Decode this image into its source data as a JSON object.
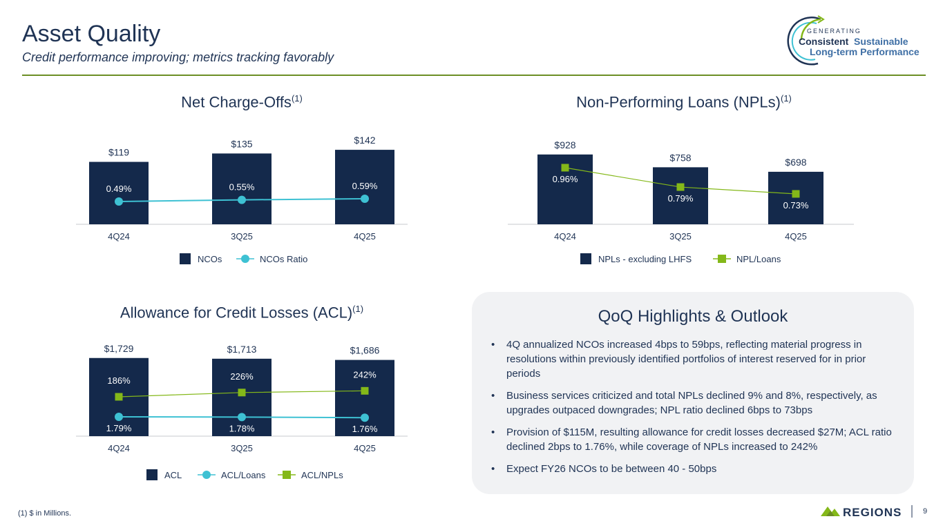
{
  "header": {
    "title": "Asset Quality",
    "subtitle": "Credit performance improving; metrics tracking favorably"
  },
  "logo": {
    "line1": "GENERATING",
    "line2a": "Consistent",
    "line2b": "Sustainable",
    "line3": "Long-term Performance"
  },
  "colors": {
    "navy": "#14294b",
    "teal": "#3ec1d3",
    "green": "#84b819",
    "olive": "#6b8e23"
  },
  "chart_data": [
    {
      "type": "bar",
      "title": "Net Charge-Offs",
      "title_sup": "(1)",
      "categories": [
        "4Q24",
        "3Q25",
        "4Q25"
      ],
      "series": [
        {
          "name": "NCOs",
          "kind": "bar",
          "values": [
            119,
            135,
            142
          ],
          "labels": [
            "$119",
            "$135",
            "$142"
          ],
          "color": "#14294b"
        },
        {
          "name": "NCOs Ratio",
          "kind": "line",
          "marker": "circle",
          "values": [
            0.49,
            0.55,
            0.59
          ],
          "labels": [
            "0.49%",
            "0.55%",
            "0.59%"
          ],
          "color": "#3ec1d3"
        }
      ]
    },
    {
      "type": "bar",
      "title": "Non-Performing Loans (NPLs)",
      "title_sup": "(1)",
      "categories": [
        "4Q24",
        "3Q25",
        "4Q25"
      ],
      "series": [
        {
          "name": "NPLs - excluding LHFS",
          "kind": "bar",
          "values": [
            928,
            758,
            698
          ],
          "labels": [
            "$928",
            "$758",
            "$698"
          ],
          "color": "#14294b"
        },
        {
          "name": "NPL/Loans",
          "kind": "line",
          "marker": "square",
          "values": [
            0.96,
            0.79,
            0.73
          ],
          "labels": [
            "0.96%",
            "0.79%",
            "0.73%"
          ],
          "color": "#84b819"
        }
      ]
    },
    {
      "type": "bar",
      "title": "Allowance for Credit Losses (ACL)",
      "title_sup": "(1)",
      "categories": [
        "4Q24",
        "3Q25",
        "4Q25"
      ],
      "series": [
        {
          "name": "ACL",
          "kind": "bar",
          "values": [
            1729,
            1713,
            1686
          ],
          "labels": [
            "$1,729",
            "$1,713",
            "$1,686"
          ],
          "color": "#14294b"
        },
        {
          "name": "ACL/Loans",
          "kind": "line",
          "marker": "circle",
          "values": [
            1.79,
            1.78,
            1.76
          ],
          "labels": [
            "1.79%",
            "1.78%",
            "1.76%"
          ],
          "color": "#3ec1d3"
        },
        {
          "name": "ACL/NPLs",
          "kind": "line",
          "marker": "square",
          "values": [
            186,
            226,
            242
          ],
          "labels": [
            "186%",
            "226%",
            "242%"
          ],
          "color": "#84b819"
        }
      ]
    }
  ],
  "highlights": {
    "title": "QoQ Highlights & Outlook",
    "bullets": [
      "4Q annualized NCOs increased 4bps to 59bps, reflecting material progress in resolutions within previously identified portfolios of interest reserved for in prior periods",
      "Business services criticized and total NPLs declined 9% and 8%, respectively, as upgrades outpaced downgrades; NPL ratio declined 6bps to 73bps",
      "Provision of $115M, resulting allowance for credit losses decreased $27M; ACL ratio declined 2bps to 1.76%, while coverage of NPLs increased to 242%",
      "Expect FY26 NCOs to be between 40 - 50bps"
    ]
  },
  "footer": {
    "footnote": "(1) $ in Millions.",
    "brand": "REGIONS",
    "page_number": "9"
  }
}
